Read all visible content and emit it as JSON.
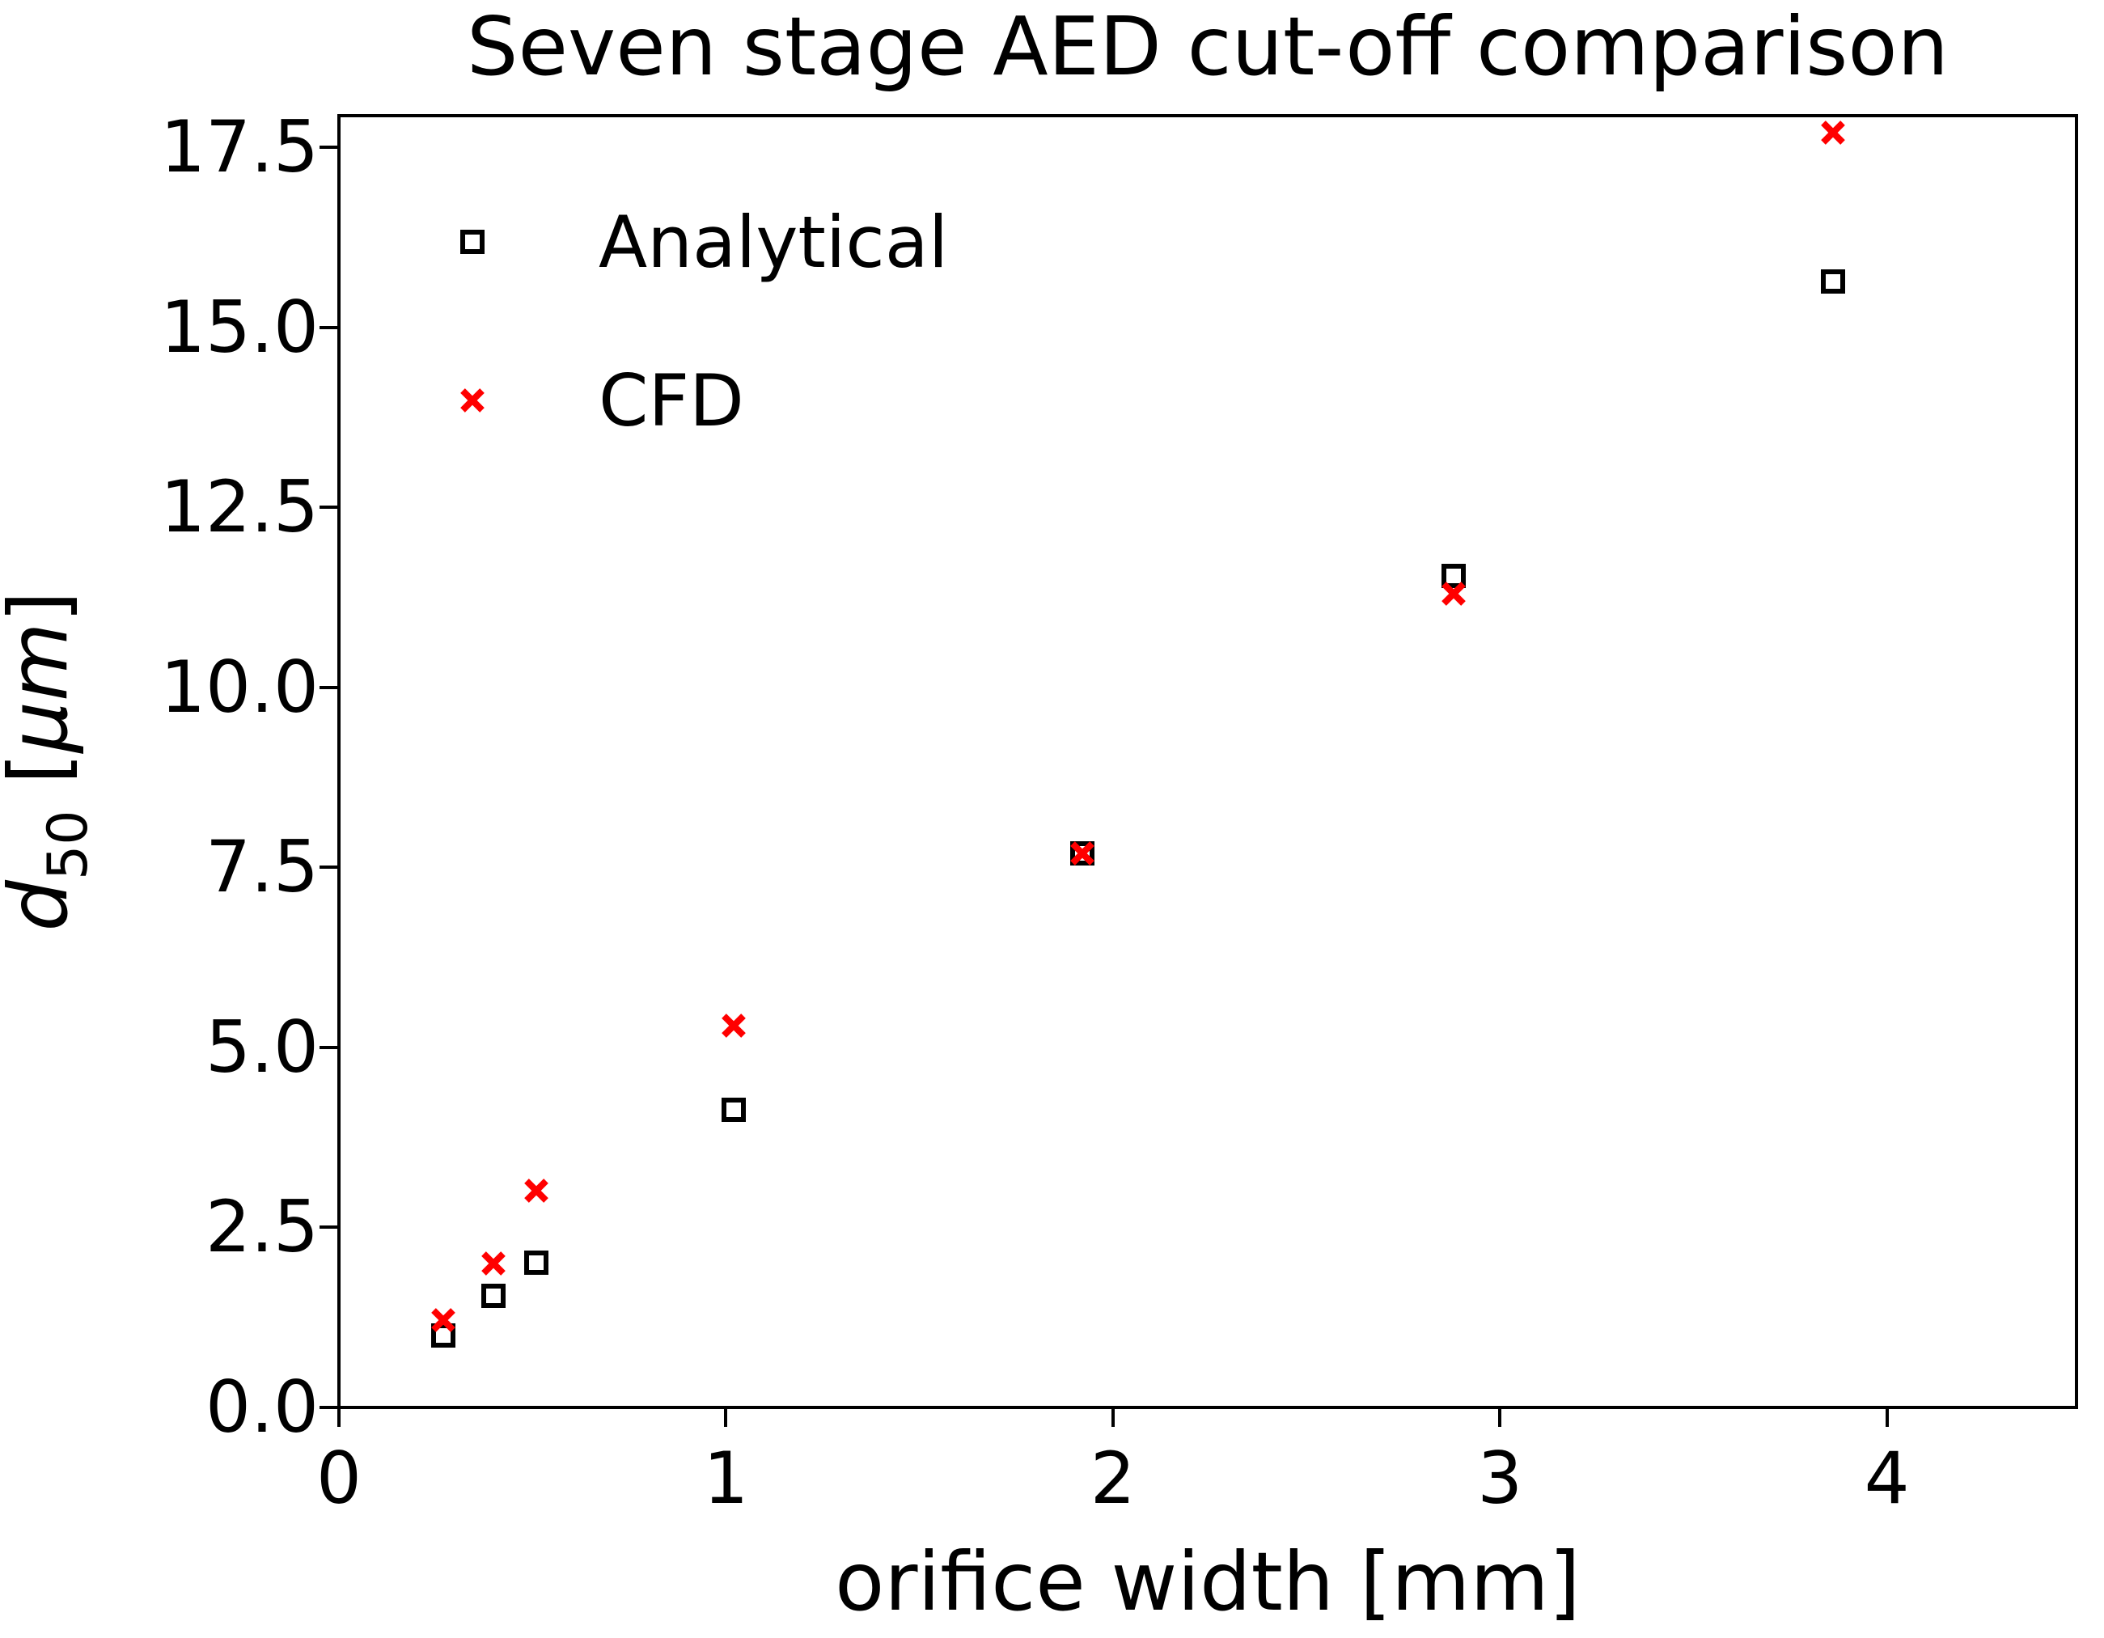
{
  "chart_data": {
    "type": "scatter",
    "title": "Seven stage AED cut-off comparison",
    "xlabel": "orifice width [mm]",
    "ylabel": "d50 [μm]",
    "ylabel_parts": {
      "var": "d",
      "sub": "50",
      "open": " [",
      "unit": "μm",
      "close": "]"
    },
    "xlim": [
      0,
      4.49
    ],
    "ylim": [
      0,
      17.94
    ],
    "xticks": [
      0,
      1,
      2,
      3,
      4
    ],
    "xtick_labels": [
      "0",
      "1",
      "2",
      "3",
      "4"
    ],
    "yticks": [
      0,
      2.5,
      5,
      7.5,
      10,
      12.5,
      15,
      17.5
    ],
    "ytick_labels": [
      "0.0",
      "2.5",
      "5.0",
      "7.5",
      "10.0",
      "12.5",
      "15.0",
      "17.5"
    ],
    "grid": false,
    "legend_position": "upper-left",
    "x": [
      0.27,
      0.4,
      0.51,
      1.02,
      1.92,
      2.88,
      3.86
    ],
    "series": [
      {
        "name": "Analytical",
        "marker": "open-square",
        "color": "#000000",
        "values": [
          1.0,
          1.55,
          2.01,
          4.13,
          7.7,
          11.55,
          15.64
        ]
      },
      {
        "name": "CFD",
        "marker": "x",
        "color": "#ff0000",
        "values": [
          1.21,
          2.0,
          3.01,
          5.3,
          7.7,
          11.3,
          17.7
        ]
      }
    ]
  }
}
